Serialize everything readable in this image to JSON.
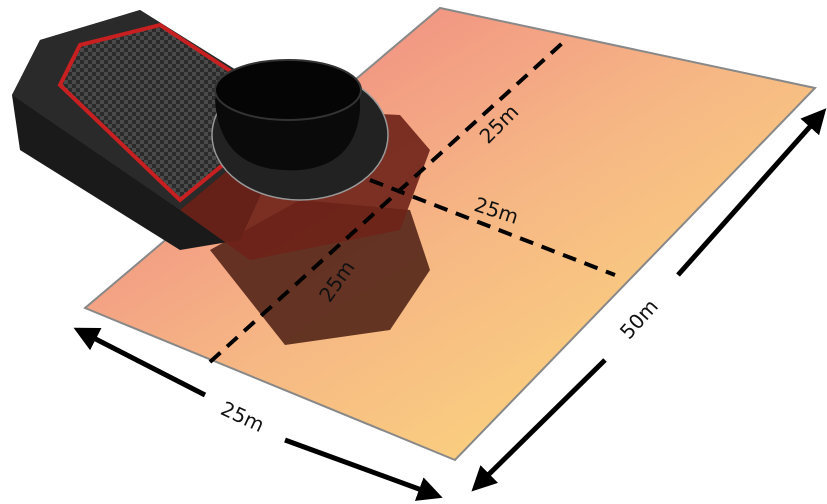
{
  "dimensions": [
    {
      "label": "25m"
    },
    {
      "label": "25m"
    },
    {
      "label": "25m"
    },
    {
      "label": "50m"
    },
    {
      "label": "25m"
    }
  ]
}
